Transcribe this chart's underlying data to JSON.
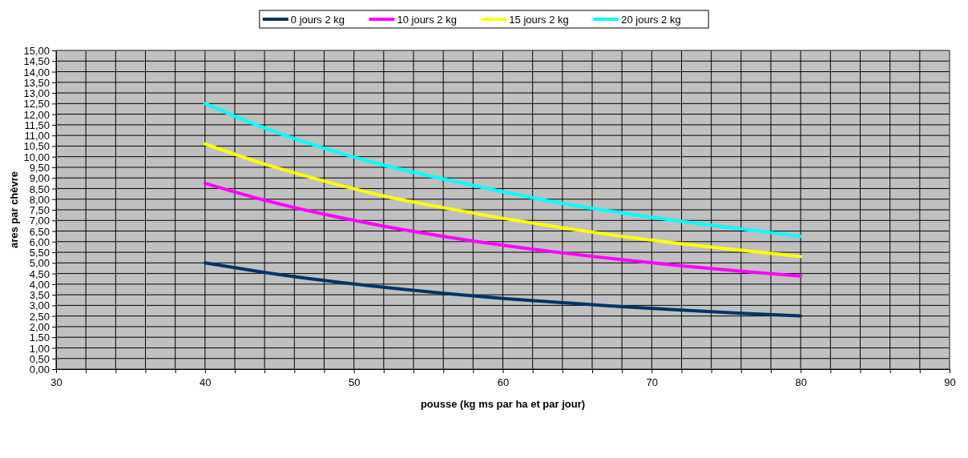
{
  "chart_data": {
    "type": "line",
    "xlabel": "pousse (kg ms par ha et par jour)",
    "ylabel": "ares par chèvre",
    "x": [
      40,
      44,
      48,
      52,
      56,
      60,
      64,
      68,
      72,
      76,
      80
    ],
    "series": [
      {
        "name": "0 jours 2 kg",
        "color": "#003366",
        "values": [
          5.0,
          4.55,
          4.17,
          3.85,
          3.57,
          3.33,
          3.13,
          2.94,
          2.78,
          2.63,
          2.5
        ]
      },
      {
        "name": "10 jours 2 kg",
        "color": "#ff00ff",
        "values": [
          8.75,
          7.95,
          7.29,
          6.73,
          6.25,
          5.83,
          5.47,
          5.15,
          4.86,
          4.61,
          4.38
        ]
      },
      {
        "name": "15 jours 2 kg",
        "color": "#ffff00",
        "values": [
          10.6,
          9.65,
          8.85,
          8.15,
          7.6,
          7.1,
          6.65,
          6.25,
          5.9,
          5.6,
          5.3
        ]
      },
      {
        "name": "20 jours 2 kg",
        "color": "#00ffff",
        "values": [
          12.5,
          11.35,
          10.4,
          9.6,
          8.95,
          8.35,
          7.8,
          7.35,
          6.95,
          6.6,
          6.25
        ]
      }
    ],
    "xlim": [
      30,
      90
    ],
    "xticks": [
      30,
      {
        "value": 32,
        "label": null
      },
      {
        "value": 34,
        "label": null
      },
      {
        "value": 36,
        "label": null
      },
      {
        "value": 38,
        "label": null
      },
      40,
      {
        "value": 42,
        "label": null
      },
      {
        "value": 44,
        "label": null
      },
      {
        "value": 46,
        "label": null
      },
      {
        "value": 48,
        "label": null
      },
      50,
      {
        "value": 52,
        "label": null
      },
      {
        "value": 54,
        "label": null
      },
      {
        "value": 56,
        "label": null
      },
      {
        "value": 58,
        "label": null
      },
      60,
      {
        "value": 62,
        "label": null
      },
      {
        "value": 64,
        "label": null
      },
      {
        "value": 66,
        "label": null
      },
      {
        "value": 68,
        "label": null
      },
      70,
      {
        "value": 72,
        "label": null
      },
      {
        "value": 74,
        "label": null
      },
      {
        "value": 76,
        "label": null
      },
      {
        "value": 78,
        "label": null
      },
      80,
      {
        "value": 82,
        "label": null
      },
      {
        "value": 84,
        "label": null
      },
      {
        "value": 86,
        "label": null
      },
      {
        "value": 88,
        "label": null
      },
      90
    ],
    "ylim": [
      0,
      15
    ],
    "yticks": [
      {
        "value": 0,
        "label": "0,00"
      },
      {
        "value": 0.5,
        "label": "0,50"
      },
      {
        "value": 1,
        "label": "1,00"
      },
      {
        "value": 1.5,
        "label": "1,50"
      },
      {
        "value": 2,
        "label": "2,00"
      },
      {
        "value": 2.5,
        "label": "2,50"
      },
      {
        "value": 3,
        "label": "3,00"
      },
      {
        "value": 3.5,
        "label": "3,50"
      },
      {
        "value": 4,
        "label": "4,00"
      },
      {
        "value": 4.5,
        "label": "4,50"
      },
      {
        "value": 5,
        "label": "5,00"
      },
      {
        "value": 5.5,
        "label": "5,50"
      },
      {
        "value": 6,
        "label": "6,00"
      },
      {
        "value": 6.5,
        "label": "6,50"
      },
      {
        "value": 7,
        "label": "7,00"
      },
      {
        "value": 7.5,
        "label": "7,50"
      },
      {
        "value": 8,
        "label": "8,00"
      },
      {
        "value": 8.5,
        "label": "8,50"
      },
      {
        "value": 9,
        "label": "9,00"
      },
      {
        "value": 9.5,
        "label": "9,50"
      },
      {
        "value": 10,
        "label": "10,00"
      },
      {
        "value": 10.5,
        "label": "10,50"
      },
      {
        "value": 11,
        "label": "11,00"
      },
      {
        "value": 11.5,
        "label": "11,50"
      },
      {
        "value": 12,
        "label": "12,00"
      },
      {
        "value": 12.5,
        "label": "12,50"
      },
      {
        "value": 13,
        "label": "13,00"
      },
      {
        "value": 13.5,
        "label": "13,50"
      },
      {
        "value": 14,
        "label": "14,00"
      },
      {
        "value": 14.5,
        "label": "14,50"
      },
      {
        "value": 15,
        "label": "15,00"
      }
    ],
    "grid": true,
    "legend": "top",
    "marker": "none",
    "line_style": "solid"
  }
}
